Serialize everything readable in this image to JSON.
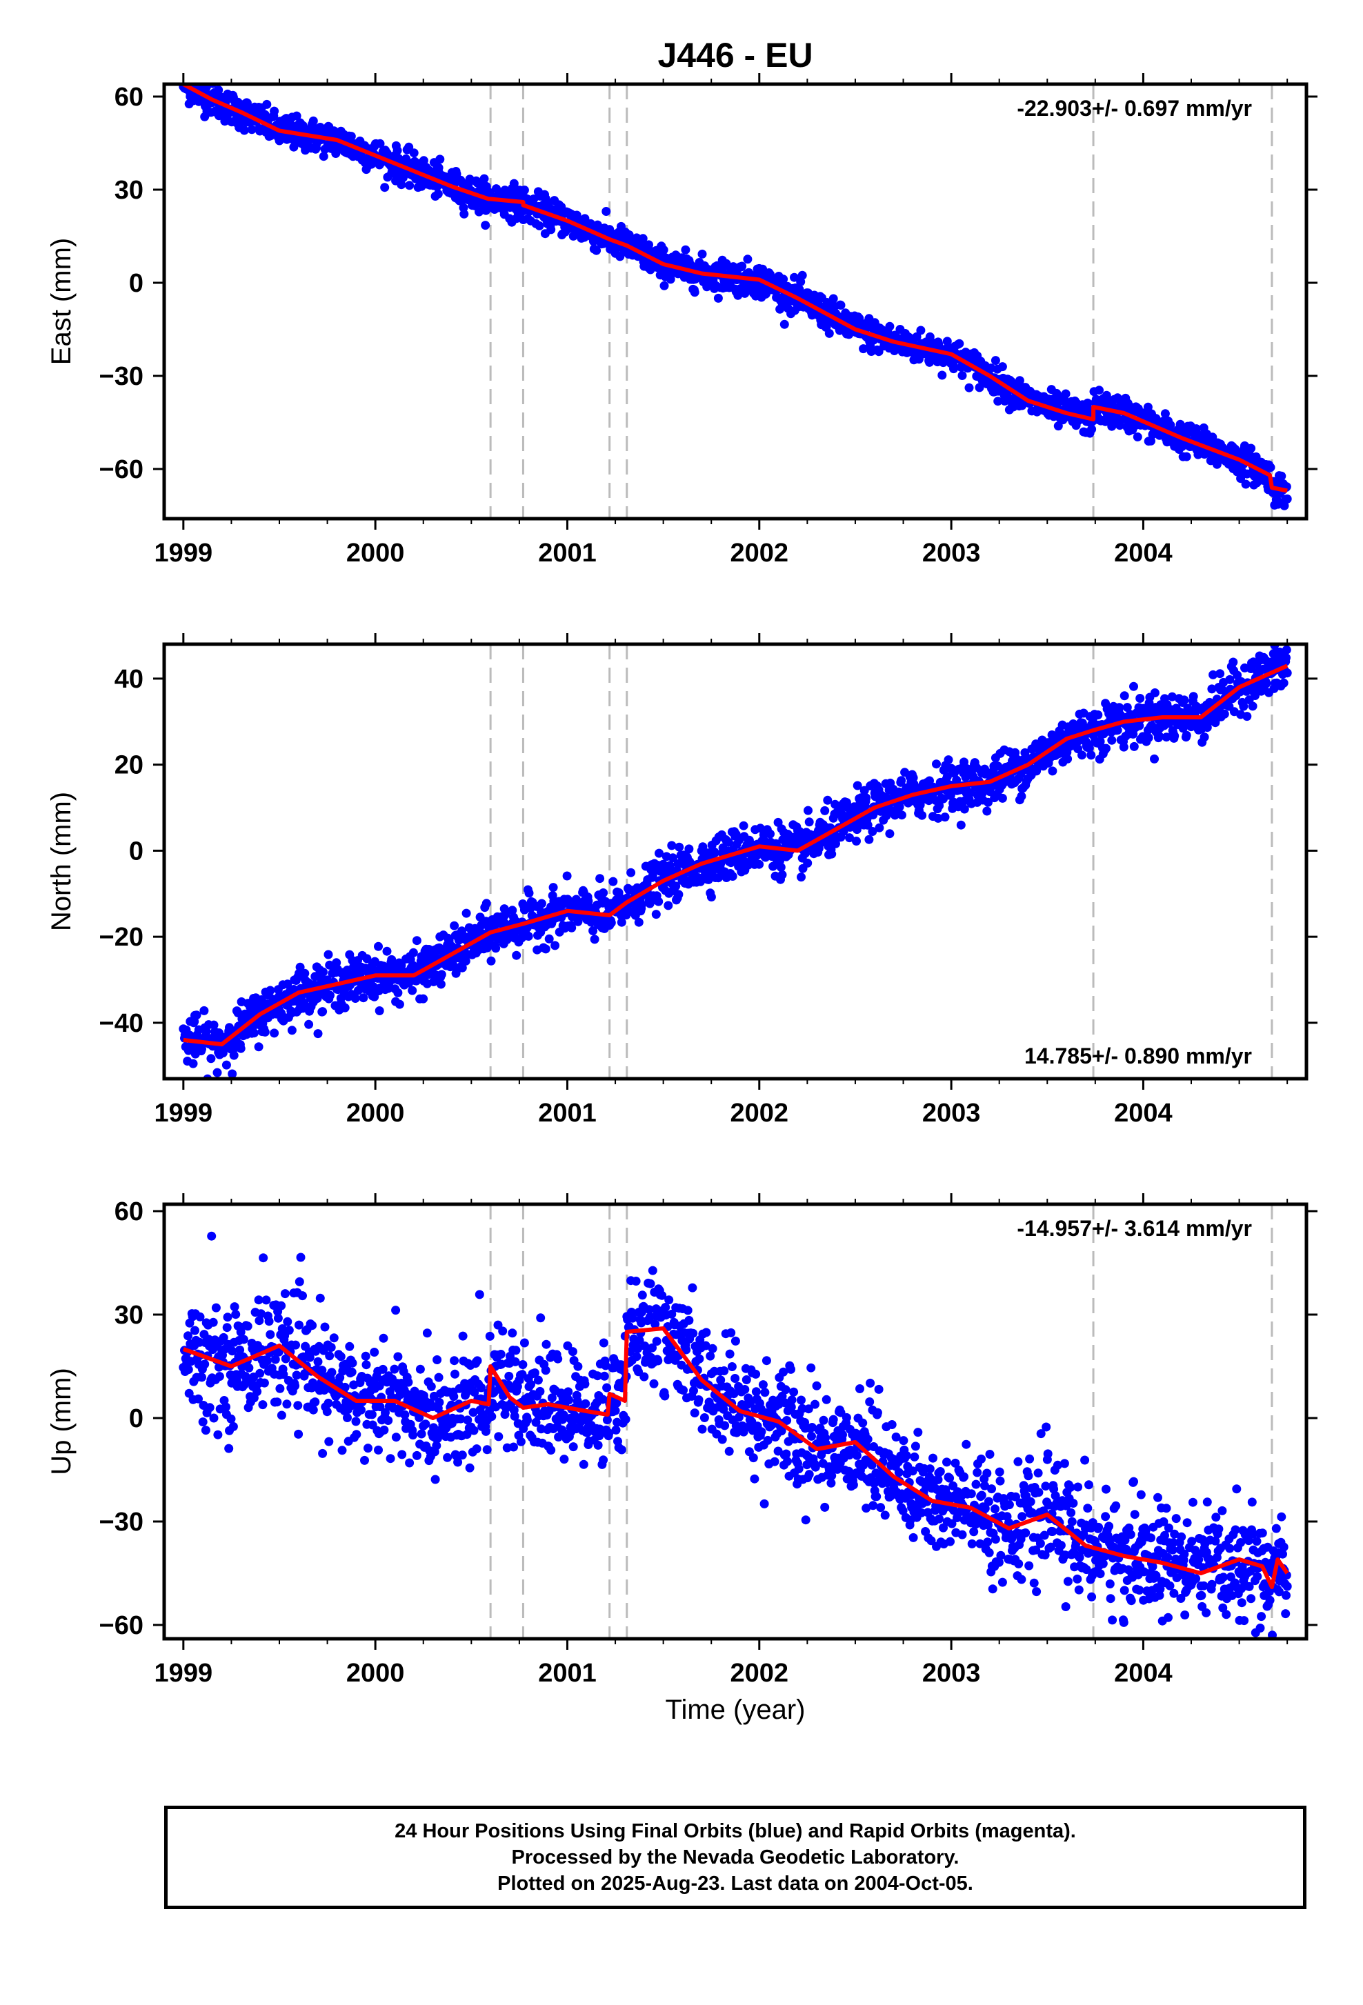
{
  "title": "J446 - EU",
  "xlabel": "Time (year)",
  "footer": {
    "line1": "24 Hour Positions Using Final Orbits (blue) and Rapid Orbits (magenta).",
    "line2": "Processed by the Nevada Geodetic Laboratory.",
    "line3": "Plotted on 2025-Aug-23. Last data on 2004-Oct-05."
  },
  "colors": {
    "data": "#0000ff",
    "model": "#ff0000",
    "event_line": "#bbbbbb",
    "frame": "#000000"
  },
  "chart_data": [
    {
      "type": "scatter",
      "component": "east",
      "ylabel": "East (mm)",
      "rate_text": "-22.903+/- 0.697 mm/yr",
      "rate_position": "top-right",
      "xlim": [
        1998.9,
        2004.85
      ],
      "ylim": [
        -76,
        64
      ],
      "xticks": [
        1999,
        2000,
        2001,
        2002,
        2003,
        2004
      ],
      "xtick_labels": [
        "1999",
        "2000",
        "2001",
        "2002",
        "2003",
        "2004"
      ],
      "yticks": [
        60,
        30,
        0,
        -30,
        -60
      ],
      "ytick_labels": [
        "60",
        "30",
        "0",
        "−30",
        "−60"
      ],
      "event_lines": [
        2000.6,
        2000.77,
        2001.22,
        2001.31,
        2003.74,
        2004.67
      ],
      "model": {
        "name": "",
        "x": [
          1999.0,
          1999.15,
          1999.3,
          1999.5,
          1999.8,
          2000.0,
          2000.2,
          2000.4,
          2000.59,
          2000.6,
          2000.77,
          2000.77,
          2001.0,
          2001.22,
          2001.31,
          2001.5,
          2001.7,
          2002.0,
          2002.2,
          2002.5,
          2002.7,
          2003.0,
          2003.2,
          2003.4,
          2003.6,
          2003.74,
          2003.74,
          2003.9,
          2004.2,
          2004.5,
          2004.66,
          2004.67,
          2004.75
        ],
        "y": [
          64,
          59,
          55,
          49,
          46,
          41,
          36,
          31,
          27,
          27,
          26,
          25,
          20,
          14,
          12,
          6,
          3,
          1,
          -5,
          -15,
          -19,
          -23,
          -30,
          -38,
          -42,
          -44,
          -40,
          -42,
          -50,
          -57,
          -62,
          -66,
          -67
        ]
      },
      "series": {
        "name": "",
        "noise_mm": 2.6,
        "points": 1920
      }
    },
    {
      "type": "scatter",
      "component": "north",
      "ylabel": "North (mm)",
      "rate_text": "14.785+/- 0.890 mm/yr",
      "rate_position": "bottom-right",
      "xlim": [
        1998.9,
        2004.85
      ],
      "ylim": [
        -53,
        48
      ],
      "xticks": [
        1999,
        2000,
        2001,
        2002,
        2003,
        2004
      ],
      "xtick_labels": [
        "1999",
        "2000",
        "2001",
        "2002",
        "2003",
        "2004"
      ],
      "yticks": [
        40,
        20,
        0,
        -20,
        -40
      ],
      "ytick_labels": [
        "40",
        "20",
        "0",
        "−20",
        "−40"
      ],
      "event_lines": [
        2000.6,
        2000.77,
        2001.22,
        2001.31,
        2003.74,
        2004.67
      ],
      "model": {
        "name": "",
        "x": [
          1999.0,
          1999.2,
          1999.4,
          1999.6,
          1999.8,
          2000.0,
          2000.2,
          2000.4,
          2000.6,
          2000.77,
          2001.0,
          2001.22,
          2001.31,
          2001.5,
          2001.7,
          2002.0,
          2002.2,
          2002.4,
          2002.6,
          2002.8,
          2003.0,
          2003.2,
          2003.4,
          2003.6,
          2003.74,
          2003.9,
          2004.1,
          2004.3,
          2004.5,
          2004.75
        ],
        "y": [
          -44,
          -45,
          -38,
          -33,
          -31,
          -29,
          -29,
          -24,
          -19,
          -17,
          -14,
          -15,
          -12,
          -7,
          -3,
          1,
          0,
          5,
          10,
          13,
          15,
          16,
          20,
          26,
          28,
          30,
          31,
          31,
          38,
          43
        ]
      },
      "series": {
        "name": "",
        "noise_mm": 2.8,
        "points": 1920
      }
    },
    {
      "type": "scatter",
      "component": "up",
      "ylabel": "Up (mm)",
      "rate_text": "-14.957+/- 3.614 mm/yr",
      "rate_position": "top-right",
      "xlim": [
        1998.9,
        2004.85
      ],
      "ylim": [
        -64,
        62
      ],
      "xticks": [
        1999,
        2000,
        2001,
        2002,
        2003,
        2004
      ],
      "xtick_labels": [
        "1999",
        "2000",
        "2001",
        "2002",
        "2003",
        "2004"
      ],
      "yticks": [
        60,
        30,
        0,
        -30,
        -60
      ],
      "ytick_labels": [
        "60",
        "30",
        "0",
        "−30",
        "−60"
      ],
      "event_lines": [
        2000.6,
        2000.77,
        2001.22,
        2001.31,
        2003.74,
        2004.67
      ],
      "data_gap": [
        2003.09,
        2003.1
      ],
      "model": {
        "name": "",
        "x": [
          1999.0,
          1999.1,
          1999.25,
          1999.5,
          1999.7,
          1999.9,
          2000.1,
          2000.3,
          2000.5,
          2000.59,
          2000.6,
          2000.7,
          2000.77,
          2000.9,
          2001.1,
          2001.21,
          2001.22,
          2001.3,
          2001.31,
          2001.5,
          2001.7,
          2001.9,
          2002.1,
          2002.3,
          2002.5,
          2002.7,
          2002.9,
          2003.1,
          2003.3,
          2003.5,
          2003.7,
          2003.9,
          2004.1,
          2004.3,
          2004.5,
          2004.62,
          2004.67,
          2004.7,
          2004.75
        ],
        "y": [
          20,
          18,
          15,
          21,
          12,
          5,
          5,
          0,
          5,
          4,
          15,
          6,
          3,
          4,
          2,
          1,
          7,
          5,
          25,
          26,
          11,
          2,
          -1,
          -9,
          -7,
          -17,
          -24,
          -26,
          -32,
          -28,
          -37,
          -40,
          -42,
          -45,
          -41,
          -43,
          -49,
          -41,
          -45
        ]
      },
      "series": {
        "name": "",
        "noise_mm": 8.0,
        "points": 1920
      }
    }
  ]
}
